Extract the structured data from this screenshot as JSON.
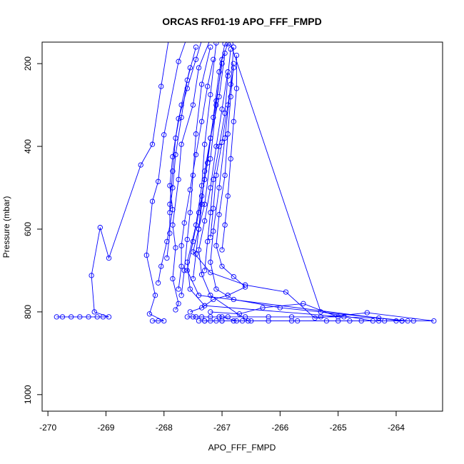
{
  "chart_data": {
    "type": "scatter",
    "title": "ORCAS RF01-19 APO_FFF_FMPD",
    "xlabel": "APO_FFF_FMPD",
    "ylabel": "Pressure (mbar)",
    "xlim": [
      -270.1,
      -263.2
    ],
    "ylim": [
      1040,
      148
    ],
    "y_reversed": true,
    "xticks": [
      -270,
      -269,
      -268,
      -267,
      -266,
      -265,
      -264
    ],
    "yticks": [
      200,
      400,
      600,
      800,
      1000
    ],
    "grid": false,
    "legend": "none",
    "color": "#0000ff",
    "marker": "open-circle",
    "series": [
      {
        "values": [
          [
            -269.85,
            812
          ],
          [
            -269.75,
            812
          ],
          [
            -269.6,
            812
          ],
          [
            -269.45,
            812
          ],
          [
            -269.3,
            812
          ],
          [
            -269.15,
            812
          ],
          [
            -269.05,
            812
          ],
          [
            -268.95,
            812
          ],
          [
            -269.2,
            800
          ],
          [
            -269.25,
            712
          ],
          [
            -269.1,
            596
          ],
          [
            -268.95,
            670
          ],
          [
            -268.4,
            445
          ],
          [
            -268.2,
            395
          ],
          [
            -268.05,
            255
          ],
          [
            -267.9,
            125
          ],
          [
            -267.6,
            60
          ]
        ]
      },
      {
        "values": [
          [
            -268.2,
            822
          ],
          [
            -268.1,
            822
          ],
          [
            -268.0,
            822
          ],
          [
            -268.25,
            805
          ],
          [
            -268.15,
            760
          ],
          [
            -268.3,
            663
          ],
          [
            -268.2,
            533
          ],
          [
            -268.1,
            485
          ],
          [
            -268.0,
            372
          ],
          [
            -267.75,
            195
          ],
          [
            -267.55,
            115
          ]
        ]
      },
      {
        "values": [
          [
            -268.1,
            730
          ],
          [
            -268.05,
            690
          ],
          [
            -267.95,
            630
          ],
          [
            -267.85,
            553
          ],
          [
            -267.9,
            495
          ],
          [
            -267.85,
            425
          ],
          [
            -267.75,
            333
          ],
          [
            -267.6,
            260
          ],
          [
            -267.45,
            190
          ],
          [
            -267.3,
            120
          ]
        ]
      },
      {
        "values": [
          [
            -267.8,
            795
          ],
          [
            -267.75,
            780
          ],
          [
            -267.85,
            720
          ],
          [
            -267.8,
            645
          ],
          [
            -267.85,
            590
          ],
          [
            -267.75,
            480
          ],
          [
            -267.7,
            395
          ],
          [
            -267.5,
            300
          ],
          [
            -267.4,
            210
          ],
          [
            -267.2,
            140
          ]
        ]
      },
      {
        "values": [
          [
            -267.4,
            822
          ],
          [
            -267.3,
            822
          ],
          [
            -267.2,
            822
          ],
          [
            -267.1,
            822
          ],
          [
            -267.0,
            822
          ],
          [
            -266.8,
            822
          ],
          [
            -266.2,
            822
          ],
          [
            -265.7,
            822
          ],
          [
            -265.2,
            822
          ],
          [
            -264.8,
            822
          ],
          [
            -264.3,
            822
          ],
          [
            -263.9,
            822
          ],
          [
            -263.7,
            822
          ],
          [
            -263.35,
            822
          ],
          [
            -264.5,
            802
          ],
          [
            -265.4,
            815
          ],
          [
            -265.9,
            752
          ],
          [
            -266.6,
            735
          ],
          [
            -267.2,
            705
          ],
          [
            -267.5,
            655
          ],
          [
            -267.3,
            540
          ],
          [
            -267.2,
            430
          ],
          [
            -267.1,
            300
          ],
          [
            -267.0,
            190
          ],
          [
            -266.9,
            152
          ]
        ]
      },
      {
        "values": [
          [
            -267.6,
            812
          ],
          [
            -267.5,
            812
          ],
          [
            -267.35,
            812
          ],
          [
            -267.2,
            812
          ],
          [
            -267.05,
            812
          ],
          [
            -266.9,
            812
          ],
          [
            -266.6,
            812
          ],
          [
            -266.2,
            812
          ],
          [
            -265.8,
            812
          ],
          [
            -265.3,
            812
          ],
          [
            -264.9,
            812
          ],
          [
            -267.3,
            785
          ],
          [
            -267.55,
            745
          ],
          [
            -267.6,
            680
          ],
          [
            -267.45,
            590
          ],
          [
            -267.35,
            495
          ],
          [
            -267.3,
            395
          ],
          [
            -267.2,
            275
          ],
          [
            -267.1,
            150
          ]
        ]
      },
      {
        "values": [
          [
            -267.7,
            760
          ],
          [
            -267.65,
            700
          ],
          [
            -267.6,
            625
          ],
          [
            -267.55,
            560
          ],
          [
            -267.5,
            470
          ],
          [
            -267.45,
            370
          ],
          [
            -267.35,
            250
          ],
          [
            -267.2,
            160
          ]
        ]
      },
      {
        "values": [
          [
            -267.3,
            822
          ],
          [
            -267.0,
            822
          ],
          [
            -266.5,
            822
          ],
          [
            -265.8,
            822
          ],
          [
            -265.0,
            822
          ],
          [
            -264.6,
            822
          ],
          [
            -264.2,
            822
          ],
          [
            -263.8,
            822
          ],
          [
            -266.0,
            790
          ],
          [
            -266.8,
            770
          ],
          [
            -267.1,
            745
          ],
          [
            -267.2,
            680
          ],
          [
            -267.15,
            605
          ],
          [
            -267.05,
            500
          ],
          [
            -266.95,
            380
          ],
          [
            -266.85,
            250
          ],
          [
            -266.8,
            160
          ]
        ]
      },
      {
        "values": [
          [
            -267.5,
            720
          ],
          [
            -267.45,
            660
          ],
          [
            -267.4,
            600
          ],
          [
            -267.35,
            520
          ],
          [
            -267.25,
            440
          ],
          [
            -267.15,
            330
          ],
          [
            -267.05,
            220
          ],
          [
            -266.95,
            152
          ]
        ]
      },
      {
        "values": [
          [
            -267.9,
            560
          ],
          [
            -267.85,
            500
          ],
          [
            -267.8,
            420
          ],
          [
            -267.7,
            330
          ],
          [
            -267.6,
            240
          ],
          [
            -267.45,
            160
          ]
        ]
      },
      {
        "values": [
          [
            -266.85,
            152
          ],
          [
            -265.3,
            800
          ],
          [
            -264.4,
            822
          ],
          [
            -264.0,
            822
          ],
          [
            -263.9,
            822
          ]
        ]
      },
      {
        "values": [
          [
            -267.2,
            800
          ],
          [
            -266.7,
            805
          ],
          [
            -266.3,
            790
          ],
          [
            -265.6,
            780
          ],
          [
            -265.0,
            812
          ],
          [
            -264.3,
            815
          ],
          [
            -263.9,
            822
          ],
          [
            -267.4,
            760
          ],
          [
            -267.6,
            700
          ],
          [
            -267.5,
            630
          ],
          [
            -267.4,
            560
          ],
          [
            -267.3,
            480
          ],
          [
            -267.2,
            380
          ],
          [
            -267.05,
            280
          ],
          [
            -266.95,
            175
          ]
        ]
      },
      {
        "values": [
          [
            -267.75,
            745
          ],
          [
            -267.7,
            690
          ],
          [
            -267.7,
            640
          ],
          [
            -267.65,
            585
          ],
          [
            -267.55,
            505
          ],
          [
            -267.45,
            420
          ],
          [
            -267.35,
            340
          ],
          [
            -267.25,
            255
          ],
          [
            -267.15,
            190
          ]
        ]
      },
      {
        "values": [
          [
            -267.55,
            800
          ],
          [
            -267.35,
            790
          ],
          [
            -267.15,
            770
          ],
          [
            -266.9,
            760
          ],
          [
            -266.6,
            740
          ],
          [
            -266.8,
            715
          ],
          [
            -267.0,
            690
          ],
          [
            -267.1,
            640
          ],
          [
            -267.05,
            565
          ],
          [
            -266.95,
            470
          ],
          [
            -266.9,
            370
          ],
          [
            -266.85,
            280
          ],
          [
            -266.8,
            200
          ]
        ]
      },
      {
        "values": [
          [
            -267.3,
            700
          ],
          [
            -267.25,
            630
          ],
          [
            -267.2,
            560
          ],
          [
            -267.15,
            480
          ],
          [
            -267.05,
            400
          ],
          [
            -266.95,
            320
          ],
          [
            -266.9,
            230
          ],
          [
            -266.85,
            165
          ]
        ]
      },
      {
        "values": [
          [
            -267.0,
            650
          ],
          [
            -266.95,
            590
          ],
          [
            -266.9,
            520
          ],
          [
            -266.85,
            430
          ],
          [
            -266.8,
            340
          ],
          [
            -266.75,
            260
          ],
          [
            -266.75,
            180
          ]
        ]
      },
      {
        "values": [
          [
            -267.95,
            670
          ],
          [
            -267.9,
            610
          ],
          [
            -267.9,
            540
          ],
          [
            -267.85,
            460
          ],
          [
            -267.8,
            380
          ],
          [
            -267.7,
            300
          ],
          [
            -267.55,
            210
          ]
        ]
      },
      {
        "values": [
          [
            -267.45,
            812
          ],
          [
            -267.0,
            812
          ],
          [
            -266.75,
            822
          ],
          [
            -266.65,
            822
          ],
          [
            -266.55,
            822
          ],
          [
            -267.2,
            760
          ],
          [
            -267.35,
            710
          ],
          [
            -267.4,
            650
          ],
          [
            -267.3,
            580
          ],
          [
            -267.2,
            500
          ],
          [
            -267.1,
            400
          ],
          [
            -267.0,
            310
          ],
          [
            -266.9,
            220
          ]
        ]
      },
      {
        "values": [
          [
            -267.4,
            600
          ],
          [
            -267.35,
            540
          ],
          [
            -267.3,
            460
          ],
          [
            -267.2,
            380
          ],
          [
            -267.1,
            290
          ],
          [
            -267.0,
            200
          ]
        ]
      },
      {
        "values": [
          [
            -267.2,
            620
          ],
          [
            -267.15,
            550
          ],
          [
            -267.1,
            470
          ],
          [
            -267.0,
            390
          ],
          [
            -266.9,
            300
          ],
          [
            -266.8,
            210
          ]
        ]
      }
    ]
  }
}
